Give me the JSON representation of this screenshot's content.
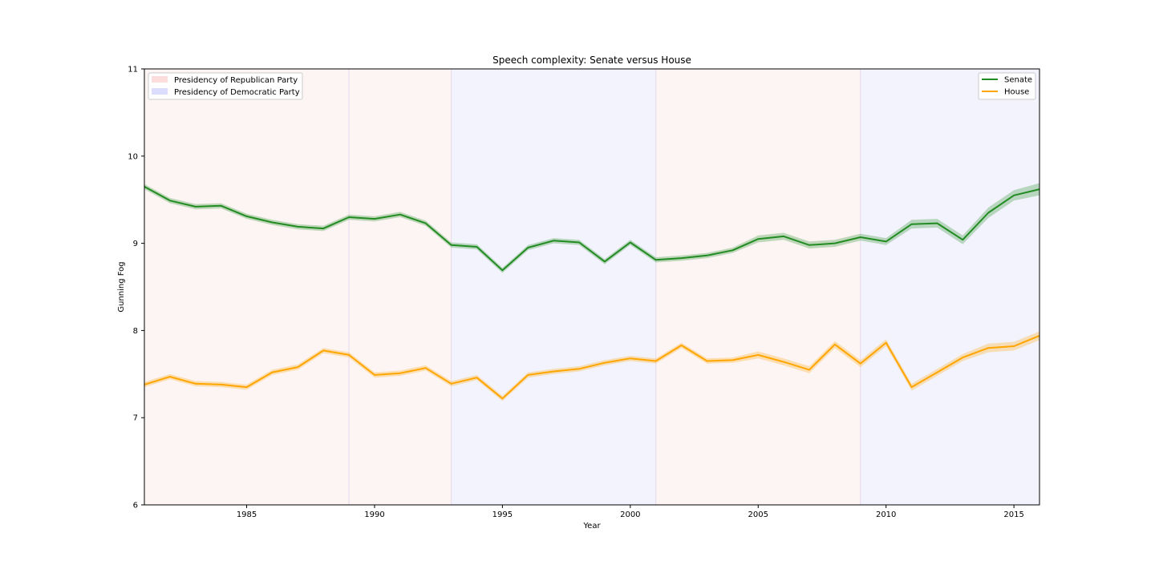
{
  "chart_data": {
    "type": "line",
    "title": "Speech complexity: Senate versus House",
    "xlabel": "Year",
    "ylabel": "Gunning Fog",
    "xlim": [
      1981,
      2016
    ],
    "ylim": [
      6,
      11
    ],
    "xticks": [
      1985,
      1990,
      1995,
      2000,
      2005,
      2010,
      2015
    ],
    "yticks": [
      6,
      7,
      8,
      9,
      10,
      11
    ],
    "grid": false,
    "x": [
      1981,
      1982,
      1983,
      1984,
      1985,
      1986,
      1987,
      1988,
      1989,
      1990,
      1991,
      1992,
      1993,
      1994,
      1995,
      1996,
      1997,
      1998,
      1999,
      2000,
      2001,
      2002,
      2003,
      2004,
      2005,
      2006,
      2007,
      2008,
      2009,
      2010,
      2011,
      2012,
      2013,
      2014,
      2015,
      2016
    ],
    "series": [
      {
        "name": "Senate",
        "color": "#228b22",
        "values": [
          9.65,
          9.49,
          9.42,
          9.43,
          9.31,
          9.24,
          9.19,
          9.17,
          9.3,
          9.28,
          9.33,
          9.23,
          8.98,
          8.96,
          8.69,
          8.95,
          9.03,
          9.01,
          8.79,
          9.01,
          8.81,
          8.83,
          8.86,
          8.92,
          9.05,
          9.08,
          8.98,
          9.0,
          9.07,
          9.02,
          9.22,
          9.23,
          9.04,
          9.35,
          9.55,
          9.62
        ],
        "band": [
          0.03,
          0.03,
          0.03,
          0.03,
          0.03,
          0.03,
          0.03,
          0.03,
          0.03,
          0.03,
          0.03,
          0.03,
          0.03,
          0.03,
          0.03,
          0.03,
          0.03,
          0.03,
          0.03,
          0.03,
          0.03,
          0.03,
          0.03,
          0.03,
          0.04,
          0.04,
          0.04,
          0.04,
          0.04,
          0.04,
          0.05,
          0.05,
          0.05,
          0.06,
          0.06,
          0.07
        ]
      },
      {
        "name": "House",
        "color": "#ffa500",
        "values": [
          7.38,
          7.47,
          7.39,
          7.38,
          7.35,
          7.52,
          7.58,
          7.77,
          7.72,
          7.49,
          7.51,
          7.57,
          7.39,
          7.46,
          7.22,
          7.49,
          7.53,
          7.56,
          7.63,
          7.68,
          7.65,
          7.83,
          7.65,
          7.66,
          7.72,
          7.64,
          7.55,
          7.84,
          7.62,
          7.86,
          7.35,
          7.52,
          7.69,
          7.8,
          7.82,
          7.94
        ],
        "band": [
          0.03,
          0.03,
          0.03,
          0.03,
          0.03,
          0.03,
          0.03,
          0.03,
          0.03,
          0.03,
          0.03,
          0.03,
          0.03,
          0.03,
          0.03,
          0.03,
          0.03,
          0.03,
          0.03,
          0.03,
          0.03,
          0.03,
          0.03,
          0.03,
          0.04,
          0.04,
          0.04,
          0.04,
          0.04,
          0.04,
          0.04,
          0.04,
          0.04,
          0.05,
          0.05,
          0.05
        ]
      }
    ],
    "shaded_periods": [
      {
        "start": 1981,
        "end": 1989,
        "party": "Republican"
      },
      {
        "start": 1989,
        "end": 1993,
        "party": "Republican"
      },
      {
        "start": 1993,
        "end": 2001,
        "party": "Democratic"
      },
      {
        "start": 2001,
        "end": 2009,
        "party": "Republican"
      },
      {
        "start": 2009,
        "end": 2016,
        "party": "Democratic"
      }
    ],
    "period_colors": {
      "Republican": "#fdf4f4",
      "Democratic": "#f3f3fd"
    },
    "period_legend": {
      "placement": "top-left",
      "items": [
        {
          "label": "Presidency of Republican Party",
          "color": "#fddcdc"
        },
        {
          "label": "Presidency of Democratic Party",
          "color": "#dcdcfd"
        }
      ]
    },
    "series_legend": {
      "placement": "top-right"
    }
  }
}
